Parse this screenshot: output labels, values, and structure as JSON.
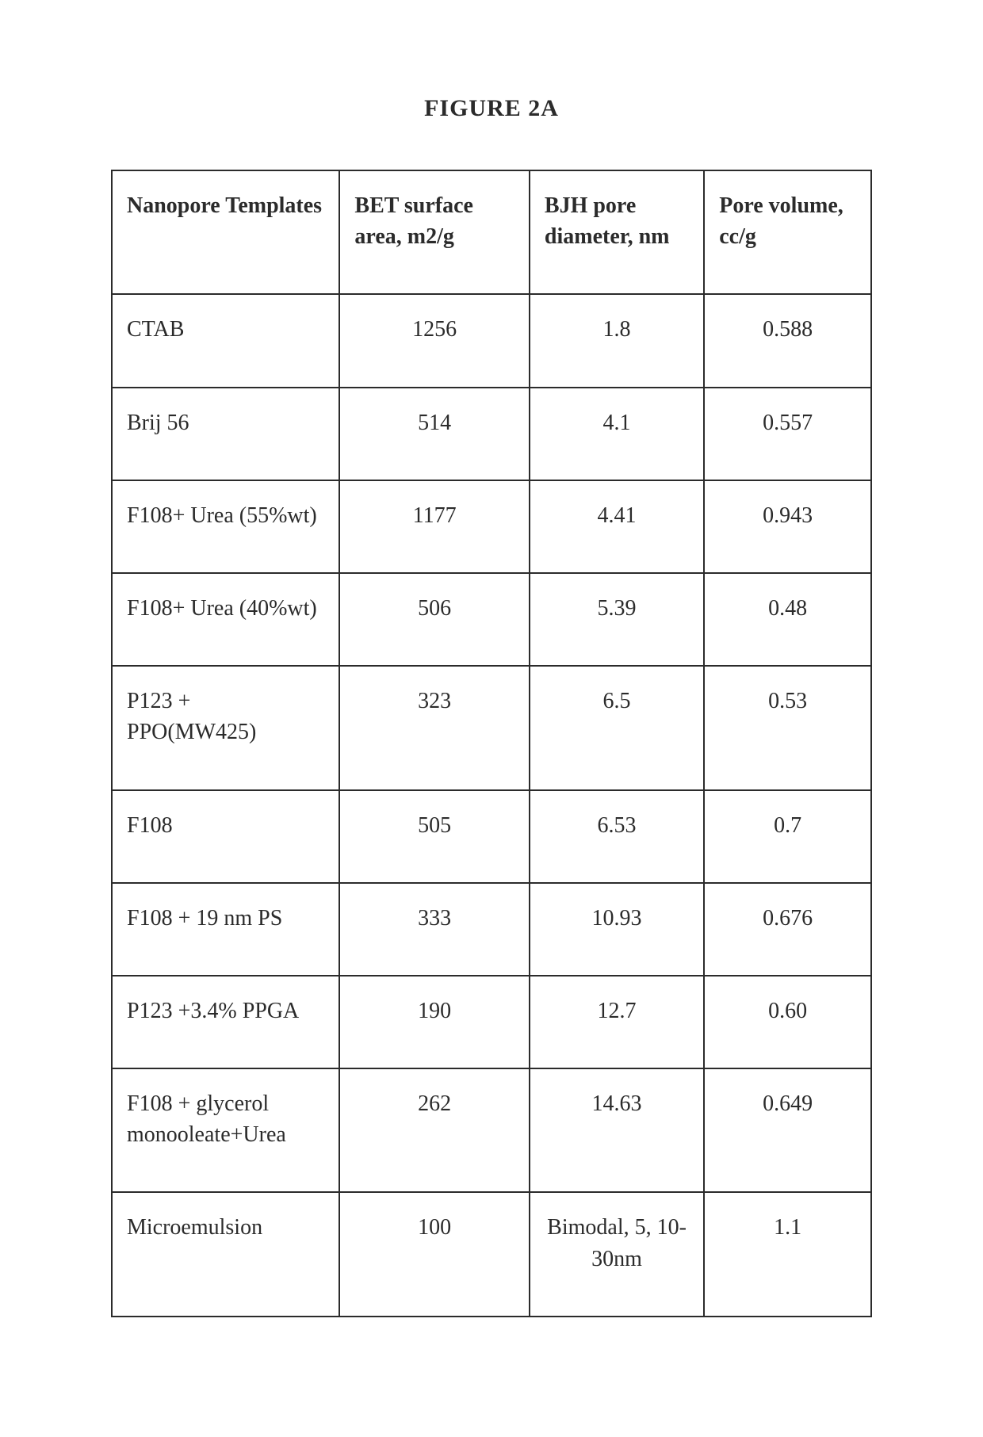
{
  "figure_title": "FIGURE 2A",
  "table": {
    "columns": [
      {
        "label": "Nanopore Templates",
        "align": "left"
      },
      {
        "label": "BET surface area,  m2/g",
        "align": "left"
      },
      {
        "label": "BJH pore diameter, nm",
        "align": "left"
      },
      {
        "label": "Pore volume, cc/g",
        "align": "left"
      }
    ],
    "column_widths_pct": [
      30,
      25,
      23,
      22
    ],
    "rows": [
      {
        "template": "CTAB",
        "bet": "1256",
        "bjh": "1.8",
        "vol": "0.588"
      },
      {
        "template": "Brij 56",
        "bet": "514",
        "bjh": "4.1",
        "vol": "0.557"
      },
      {
        "template": "F108+ Urea (55%wt)",
        "bet": "1177",
        "bjh": "4.41",
        "vol": "0.943"
      },
      {
        "template": "F108+ Urea (40%wt)",
        "bet": "506",
        "bjh": "5.39",
        "vol": "0.48"
      },
      {
        "template": "P123 + PPO(MW425)",
        "bet": "323",
        "bjh": "6.5",
        "vol": "0.53"
      },
      {
        "template": "F108",
        "bet": "505",
        "bjh": "6.53",
        "vol": "0.7"
      },
      {
        "template": "F108 + 19 nm  PS",
        "bet": "333",
        "bjh": "10.93",
        "vol": "0.676"
      },
      {
        "template": "P123 +3.4% PPGA",
        "bet": "190",
        "bjh": "12.7",
        "vol": "0.60"
      },
      {
        "template": "F108 + glycerol monooleate+Urea",
        "bet": "262",
        "bjh": "14.63",
        "vol": "0.649"
      },
      {
        "template": "Microemulsion",
        "bet": "100",
        "bjh": "Bimodal, 5, 10-30nm",
        "vol": "1.1"
      }
    ],
    "border_color": "#2b2b2b",
    "background_color": "#ffffff",
    "header_font_weight": "bold",
    "cell_fontsize_pt": 21,
    "title_fontsize_pt": 22
  }
}
